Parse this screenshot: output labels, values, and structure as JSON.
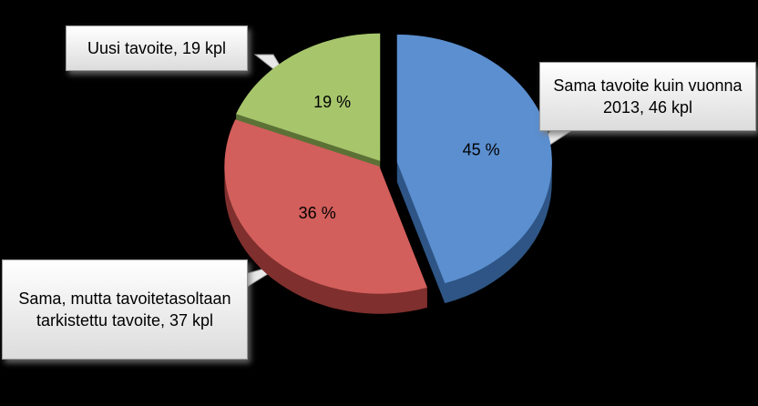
{
  "chart_data": {
    "type": "pie",
    "categories": [
      "Sama tavoite kuin vuonna 2013, 46 kpl",
      "Sama, mutta tavoitetasoltaan tarkistettu tavoite, 37 kpl",
      "Uusi tavoite, 19 kpl"
    ],
    "values": [
      45,
      36,
      19
    ],
    "value_labels": [
      "45 %",
      "36 %",
      "19 %"
    ],
    "colors": [
      "#5b8fd0",
      "#d25f5c",
      "#a7c66c"
    ],
    "side_colors": [
      "#2e5585",
      "#7f2f2d",
      "#5c7136"
    ]
  }
}
